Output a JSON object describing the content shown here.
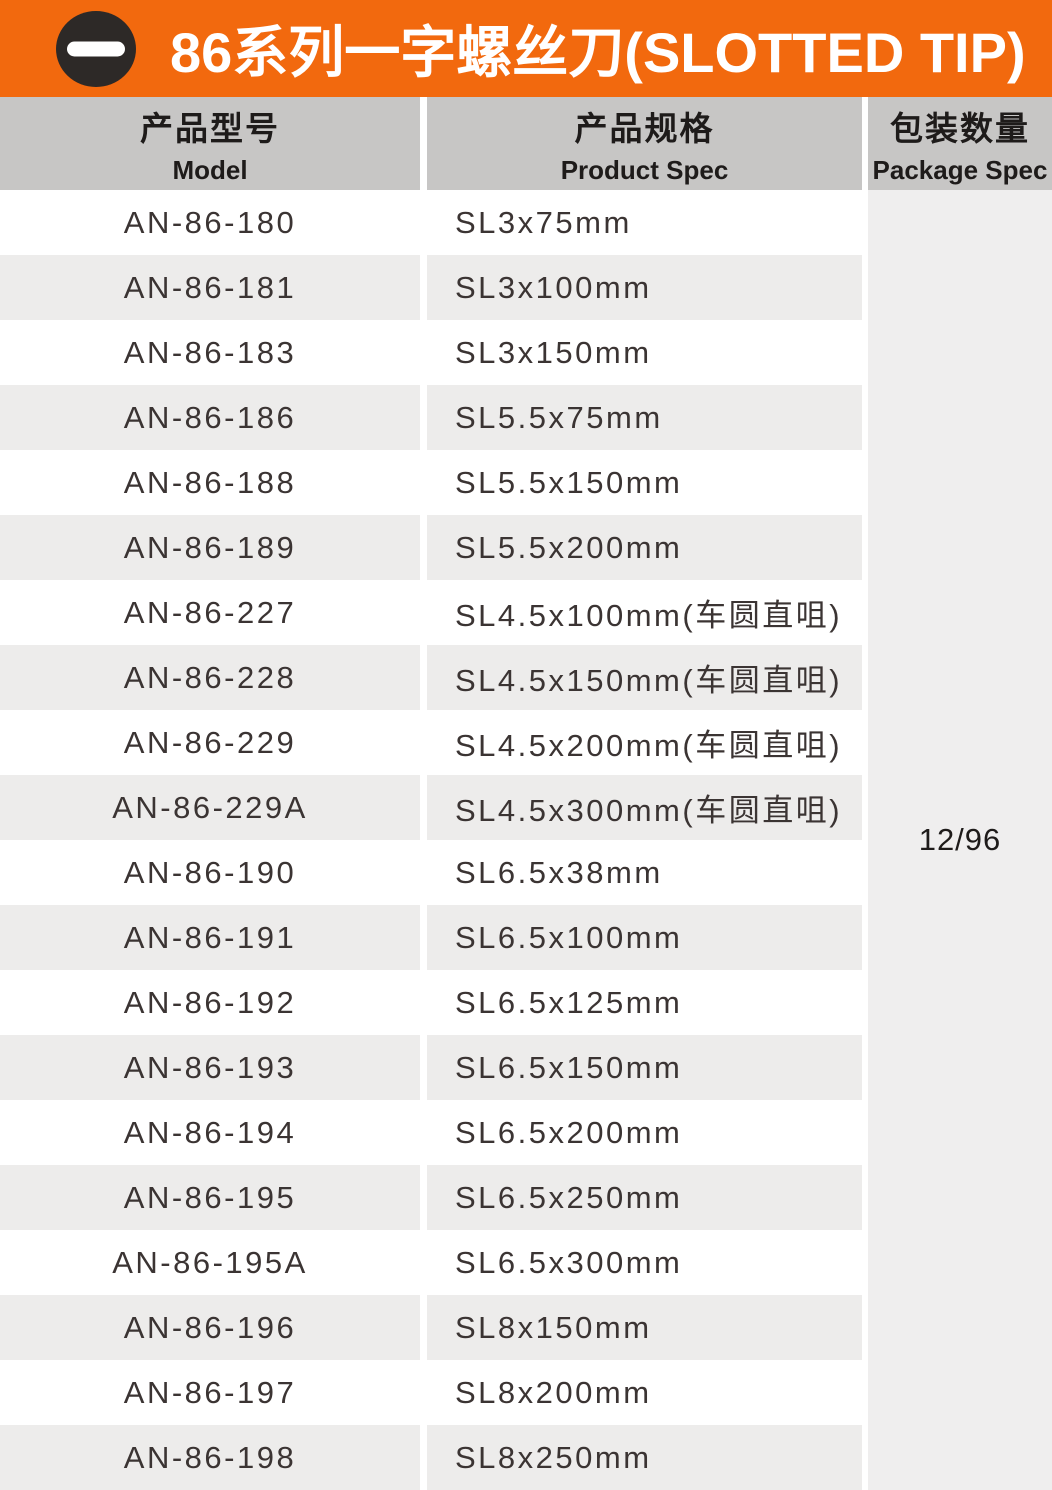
{
  "header": {
    "icon": "slotted-tip-icon",
    "title": "86系列一字螺丝刀(SLOTTED TIP)"
  },
  "table": {
    "columns": [
      {
        "zh": "产品型号",
        "en": "Model"
      },
      {
        "zh": "产品规格",
        "en": "Product Spec"
      },
      {
        "zh": "包装数量",
        "en": "Package Spec"
      }
    ],
    "rows": [
      {
        "model": "AN-86-180",
        "spec": "SL3x75mm"
      },
      {
        "model": "AN-86-181",
        "spec": "SL3x100mm"
      },
      {
        "model": "AN-86-183",
        "spec": "SL3x150mm"
      },
      {
        "model": "AN-86-186",
        "spec": "SL5.5x75mm"
      },
      {
        "model": "AN-86-188",
        "spec": "SL5.5x150mm"
      },
      {
        "model": "AN-86-189",
        "spec": "SL5.5x200mm"
      },
      {
        "model": "AN-86-227",
        "spec": "SL4.5x100mm(车圆直咀)"
      },
      {
        "model": "AN-86-228",
        "spec": "SL4.5x150mm(车圆直咀)"
      },
      {
        "model": "AN-86-229",
        "spec": "SL4.5x200mm(车圆直咀)"
      },
      {
        "model": "AN-86-229A",
        "spec": "SL4.5x300mm(车圆直咀)"
      },
      {
        "model": "AN-86-190",
        "spec": "SL6.5x38mm"
      },
      {
        "model": "AN-86-191",
        "spec": "SL6.5x100mm"
      },
      {
        "model": "AN-86-192",
        "spec": "SL6.5x125mm"
      },
      {
        "model": "AN-86-193",
        "spec": "SL6.5x150mm"
      },
      {
        "model": "AN-86-194",
        "spec": "SL6.5x200mm"
      },
      {
        "model": "AN-86-195",
        "spec": "SL6.5x250mm"
      },
      {
        "model": "AN-86-195A",
        "spec": "SL6.5x300mm"
      },
      {
        "model": "AN-86-196",
        "spec": "SL8x150mm"
      },
      {
        "model": "AN-86-197",
        "spec": "SL8x200mm"
      },
      {
        "model": "AN-86-198",
        "spec": "SL8x250mm"
      }
    ],
    "package_spec": "12/96"
  },
  "colors": {
    "accent_orange": "#F2690E",
    "icon_dark": "#2D2927",
    "header_gray": "#C7C6C5",
    "stripe_gray": "#EDECEB",
    "package_gray": "#EFEEEE",
    "text_dark": "#3B3433",
    "heading_dark": "#1E1B1A"
  }
}
